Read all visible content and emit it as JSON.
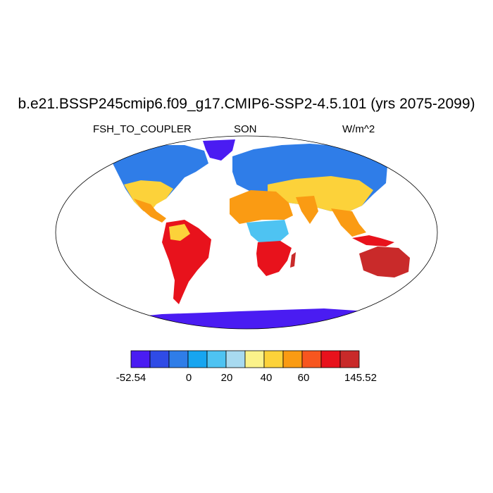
{
  "title": "b.e21.BSSP245cmip6.f09_g17.CMIP6-SSP2-4.5.101 (yrs 2075-2099)",
  "variable": "FSH_TO_COUPLER",
  "season": "SON",
  "units": "W/m^2",
  "colorbar": {
    "min_label": "-52.54",
    "max_label": "145.52",
    "tick_labels": [
      "0",
      "20",
      "40",
      "60"
    ],
    "colors": [
      "#4a1cf2",
      "#2f4be6",
      "#2f7de8",
      "#17a5f0",
      "#4ec3f2",
      "#a8daf0",
      "#fbf28a",
      "#fcd23a",
      "#fa9b13",
      "#f7561f",
      "#e8121c",
      "#c92a2a"
    ]
  },
  "colors": {
    "ocean": "#ffffff",
    "outline": "#000000",
    "cold": "#2f5fe6",
    "cool": "#4ec3f2",
    "mild": "#fcd23a",
    "warm": "#fa9b13",
    "hot": "#e8121c",
    "ice": "#4a1cf2"
  }
}
